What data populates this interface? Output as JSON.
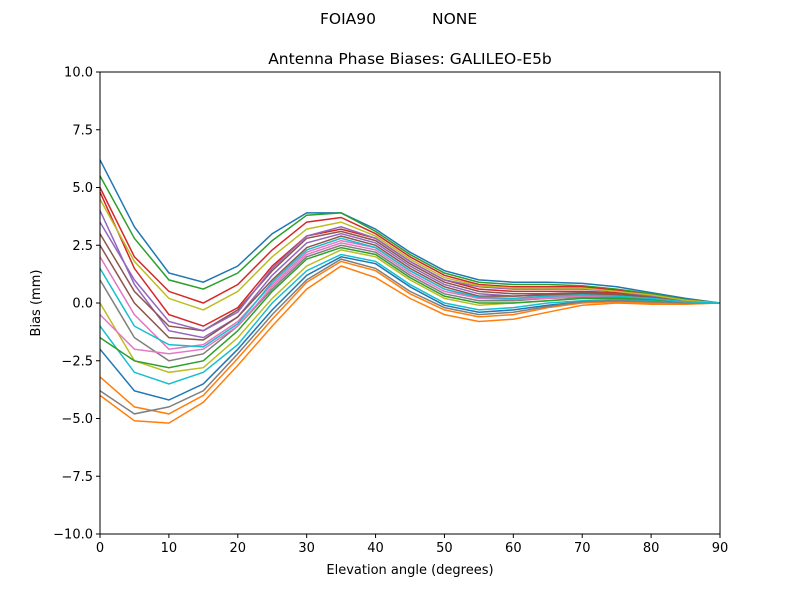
{
  "suptitle": {
    "left": "FOIA90",
    "right": "NONE"
  },
  "chart_data": {
    "type": "line",
    "title": "Antenna Phase Biases: GALILEO-E5b",
    "xlabel": "Elevation angle (degrees)",
    "ylabel": "Bias (mm)",
    "xlim": [
      0,
      90
    ],
    "ylim": [
      -10,
      10
    ],
    "xticks": [
      0,
      10,
      20,
      30,
      40,
      50,
      60,
      70,
      80,
      90
    ],
    "yticks": [
      -10.0,
      -7.5,
      -5.0,
      -2.5,
      0.0,
      2.5,
      5.0,
      7.5,
      10.0
    ],
    "ytick_labels": [
      "−10.0",
      "−7.5",
      "−5.0",
      "−2.5",
      "0.0",
      "2.5",
      "5.0",
      "7.5",
      "10.0"
    ],
    "xtick_labels": [
      "0",
      "10",
      "20",
      "30",
      "40",
      "50",
      "60",
      "70",
      "80",
      "90"
    ],
    "grid": false,
    "colors": [
      "#1f77b4",
      "#ff7f0e",
      "#2ca02c",
      "#d62728",
      "#9467bd",
      "#8c564b",
      "#e377c2",
      "#7f7f7f",
      "#bcbd22",
      "#17becf"
    ],
    "x": [
      0,
      5,
      10,
      15,
      20,
      25,
      30,
      35,
      40,
      45,
      50,
      55,
      60,
      65,
      70,
      75,
      80,
      85,
      90
    ],
    "series": [
      {
        "values": [
          6.2,
          3.3,
          1.3,
          0.9,
          1.6,
          3,
          3.9,
          3.9,
          3.2,
          2.2,
          1.4,
          1.0,
          0.9,
          0.9,
          0.85,
          0.7,
          0.45,
          0.2,
          0
        ]
      },
      {
        "values": [
          -4,
          -5.1,
          -5.2,
          -4.3,
          -2.7,
          -1,
          0.6,
          1.6,
          1.1,
          0.2,
          -0.5,
          -0.8,
          -0.7,
          -0.4,
          -0.1,
          0,
          -0.05,
          -0.05,
          0
        ]
      },
      {
        "values": [
          5.5,
          2.8,
          1.0,
          0.6,
          1.3,
          2.7,
          3.8,
          3.9,
          3.1,
          2.1,
          1.3,
          0.9,
          0.8,
          0.8,
          0.75,
          0.6,
          0.4,
          0.15,
          0
        ]
      },
      {
        "values": [
          4.8,
          1.5,
          -0.5,
          -1.0,
          -0.2,
          1.6,
          2.9,
          3.2,
          2.8,
          1.8,
          1.0,
          0.6,
          0.5,
          0.5,
          0.5,
          0.45,
          0.3,
          0.1,
          0
        ]
      },
      {
        "values": [
          4.0,
          0.8,
          -1.2,
          -1.5,
          -0.6,
          1.2,
          2.6,
          3.0,
          2.6,
          1.6,
          0.8,
          0.4,
          0.3,
          0.35,
          0.4,
          0.35,
          0.25,
          0.1,
          0
        ]
      },
      {
        "values": [
          3.0,
          0.5,
          -1.0,
          -1.2,
          -0.3,
          1.4,
          2.8,
          3.1,
          2.7,
          1.7,
          0.9,
          0.5,
          0.4,
          0.4,
          0.45,
          0.4,
          0.3,
          0.1,
          0
        ]
      },
      {
        "values": [
          2.0,
          -0.5,
          -2.0,
          -1.8,
          -0.8,
          0.8,
          2.2,
          2.7,
          2.4,
          1.4,
          0.6,
          0.2,
          0.2,
          0.25,
          0.3,
          0.3,
          0.2,
          0.05,
          0
        ]
      },
      {
        "values": [
          1.0,
          -1.5,
          -2.5,
          -2.2,
          -1.0,
          0.6,
          2.0,
          2.5,
          2.2,
          1.2,
          0.4,
          0.1,
          0.1,
          0.2,
          0.25,
          0.25,
          0.15,
          0.05,
          0
        ]
      },
      {
        "values": [
          0,
          -2.5,
          -3.0,
          -2.8,
          -1.5,
          0.2,
          1.6,
          2.3,
          2.0,
          1.0,
          0.2,
          -0.1,
          0,
          0.1,
          0.2,
          0.2,
          0.1,
          0,
          0
        ]
      },
      {
        "values": [
          -1.0,
          -3.0,
          -3.5,
          -3.0,
          -1.8,
          0,
          1.4,
          2.1,
          1.8,
          0.8,
          0,
          -0.3,
          -0.2,
          0,
          0.1,
          0.15,
          0.1,
          0,
          0
        ]
      },
      {
        "values": [
          -2.0,
          -3.8,
          -4.2,
          -3.5,
          -2.0,
          -0.3,
          1.2,
          2.0,
          1.7,
          0.7,
          -0.1,
          -0.4,
          -0.3,
          -0.1,
          0.05,
          0.1,
          0.05,
          0,
          0
        ]
      },
      {
        "values": [
          -3.2,
          -4.5,
          -4.8,
          -4.0,
          -2.4,
          -0.7,
          0.9,
          1.8,
          1.4,
          0.4,
          -0.3,
          -0.6,
          -0.5,
          -0.2,
          0,
          0.05,
          0,
          -0.03,
          0
        ]
      },
      {
        "values": [
          -1.5,
          -2.5,
          -2.8,
          -2.5,
          -1.2,
          0.5,
          1.9,
          2.4,
          2.1,
          1.1,
          0.3,
          0,
          0,
          0.1,
          0.2,
          0.2,
          0.15,
          0.05,
          0
        ]
      },
      {
        "values": [
          5.0,
          2.0,
          0.5,
          0.0,
          0.8,
          2.3,
          3.5,
          3.7,
          3.0,
          2.0,
          1.2,
          0.8,
          0.7,
          0.7,
          0.7,
          0.55,
          0.35,
          0.12,
          0
        ]
      },
      {
        "values": [
          3.5,
          1.0,
          -0.8,
          -1.2,
          -0.4,
          1.5,
          2.9,
          3.3,
          2.8,
          1.8,
          1.0,
          0.7,
          0.6,
          0.6,
          0.6,
          0.5,
          0.3,
          0.1,
          0
        ]
      },
      {
        "values": [
          2.5,
          0,
          -1.5,
          -1.6,
          -0.6,
          1.0,
          2.4,
          2.9,
          2.5,
          1.5,
          0.7,
          0.3,
          0.3,
          0.35,
          0.4,
          0.35,
          0.25,
          0.08,
          0
        ]
      },
      {
        "values": [
          -0.5,
          -2.0,
          -2.2,
          -2.0,
          -1.0,
          0.7,
          2.1,
          2.6,
          2.3,
          1.3,
          0.5,
          0.2,
          0.15,
          0.2,
          0.3,
          0.3,
          0.2,
          0.05,
          0
        ]
      },
      {
        "values": [
          -3.8,
          -4.8,
          -4.5,
          -3.8,
          -2.2,
          -0.5,
          1.0,
          1.9,
          1.5,
          0.5,
          -0.2,
          -0.5,
          -0.4,
          -0.15,
          0.05,
          0.1,
          0.05,
          0,
          0
        ]
      },
      {
        "values": [
          4.5,
          1.8,
          0.2,
          -0.3,
          0.5,
          2.0,
          3.2,
          3.5,
          2.9,
          1.9,
          1.1,
          0.75,
          0.65,
          0.65,
          0.65,
          0.5,
          0.35,
          0.12,
          0
        ]
      },
      {
        "values": [
          1.5,
          -1.0,
          -1.8,
          -1.9,
          -0.9,
          0.9,
          2.3,
          2.8,
          2.4,
          1.4,
          0.6,
          0.25,
          0.2,
          0.3,
          0.35,
          0.3,
          0.2,
          0.05,
          0
        ]
      }
    ]
  }
}
